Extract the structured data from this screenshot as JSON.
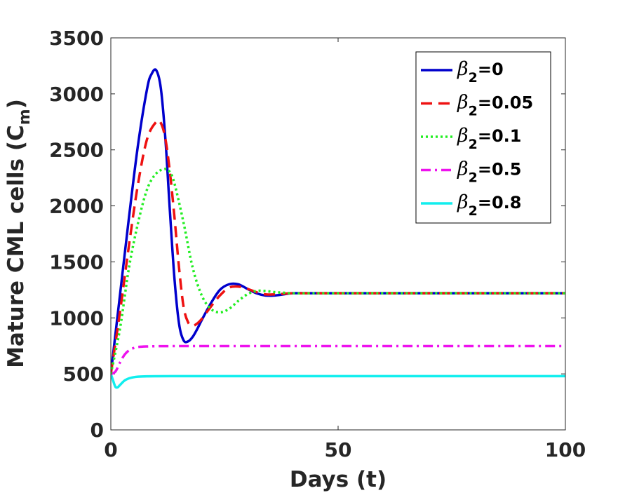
{
  "chart_data": {
    "type": "line",
    "title": "",
    "xlabel": "Days (t)",
    "ylabel": "Mature CML cells (C",
    "ylabel_subscript": "m",
    "ylabel_suffix": ")",
    "xlim": [
      0,
      100
    ],
    "ylim": [
      0,
      3500
    ],
    "xticks": [
      0,
      50,
      100
    ],
    "yticks": [
      0,
      500,
      1000,
      1500,
      2000,
      2500,
      3000,
      3500
    ],
    "grid": false,
    "legend_position": "top-right",
    "series": [
      {
        "name": "β2=0",
        "legend_symbol": "β",
        "legend_subscript": "2",
        "legend_value": "=0",
        "color": "#0000cc",
        "dash": "solid",
        "x": [
          0,
          2,
          4,
          6,
          8,
          9,
          10,
          11,
          12,
          13,
          14,
          15,
          16,
          17,
          18,
          19,
          20,
          22,
          24,
          26,
          28,
          30,
          32,
          34,
          36,
          38,
          40,
          45,
          50,
          60,
          80,
          100
        ],
        "y": [
          500,
          1200,
          1900,
          2550,
          3050,
          3180,
          3210,
          3050,
          2600,
          1950,
          1350,
          950,
          800,
          790,
          830,
          900,
          980,
          1130,
          1250,
          1300,
          1300,
          1260,
          1220,
          1200,
          1200,
          1210,
          1220,
          1220,
          1220,
          1220,
          1220,
          1220
        ]
      },
      {
        "name": "β2=0.05",
        "legend_symbol": "β",
        "legend_subscript": "2",
        "legend_value": "=0.05",
        "color": "#ee1111",
        "dash": "dashed",
        "x": [
          0,
          2,
          4,
          6,
          8,
          10,
          11,
          12,
          13,
          14,
          15,
          16,
          17,
          18,
          19,
          20,
          22,
          24,
          26,
          28,
          30,
          32,
          34,
          36,
          38,
          40,
          45,
          50,
          60,
          80,
          100
        ],
        "y": [
          500,
          1050,
          1650,
          2200,
          2600,
          2750,
          2740,
          2600,
          2300,
          1900,
          1450,
          1100,
          960,
          930,
          950,
          990,
          1100,
          1200,
          1270,
          1280,
          1260,
          1230,
          1210,
          1210,
          1215,
          1220,
          1220,
          1220,
          1220,
          1220,
          1220
        ]
      },
      {
        "name": "β2=0.1",
        "legend_symbol": "β",
        "legend_subscript": "2",
        "legend_value": "=0.1",
        "color": "#22ee22",
        "dash": "dotted",
        "x": [
          0,
          2,
          4,
          6,
          8,
          10,
          12,
          13,
          14,
          16,
          18,
          20,
          22,
          24,
          26,
          28,
          30,
          32,
          34,
          36,
          38,
          40,
          45,
          50,
          60,
          80,
          100
        ],
        "y": [
          500,
          900,
          1450,
          1850,
          2150,
          2290,
          2330,
          2300,
          2200,
          1850,
          1450,
          1200,
          1080,
          1050,
          1080,
          1150,
          1210,
          1240,
          1240,
          1230,
          1225,
          1220,
          1220,
          1220,
          1220,
          1220,
          1220
        ]
      },
      {
        "name": "β2=0.5",
        "legend_symbol": "β",
        "legend_subscript": "2",
        "legend_value": "=0.5",
        "color": "#ee11ee",
        "dash": "dashdot",
        "x": [
          0,
          1,
          2,
          3,
          4,
          5,
          6,
          8,
          10,
          15,
          20,
          30,
          50,
          100
        ],
        "y": [
          500,
          520,
          600,
          670,
          710,
          730,
          740,
          745,
          747,
          748,
          748,
          748,
          748,
          748
        ]
      },
      {
        "name": "β2=0.8",
        "legend_symbol": "β",
        "legend_subscript": "2",
        "legend_value": "=0.8",
        "color": "#11eeee",
        "dash": "solid",
        "x": [
          0,
          0.5,
          1,
          1.5,
          2,
          3,
          4,
          5,
          6,
          8,
          10,
          15,
          20,
          30,
          50,
          100
        ],
        "y": [
          500,
          440,
          385,
          380,
          400,
          440,
          460,
          470,
          475,
          478,
          479,
          480,
          480,
          480,
          480,
          480
        ]
      }
    ]
  }
}
